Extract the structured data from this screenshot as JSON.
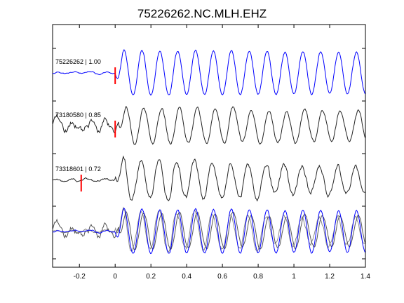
{
  "chart_data": {
    "type": "line",
    "title": "75226262.NC.MLH.EHZ",
    "xlabel": "",
    "ylabel": "",
    "xlim": [
      -0.35,
      1.4
    ],
    "x_ticks": [
      "-0.2",
      "0",
      "0.2",
      "0.4",
      "0.6",
      "0.8",
      "1",
      "1.2",
      "1.4"
    ],
    "x_tick_values": [
      -0.2,
      0,
      0.2,
      0.4,
      0.6,
      0.8,
      1,
      1.2,
      1.4
    ],
    "grid": false,
    "traces": [
      {
        "label": "75226262 | 1.00",
        "color": "#0000ff",
        "pick_time": 0.0,
        "params": {
          "noise": 0.08,
          "amp": 1.0,
          "period": 0.1,
          "phase": 0.0,
          "decay": 0.15,
          "lag": 0.0
        }
      },
      {
        "label": "73180580 | 0.85",
        "color": "#222222",
        "pick_time": 0.0,
        "params": {
          "noise": 0.45,
          "amp": 0.85,
          "period": 0.1,
          "phase": 0.6,
          "decay": 0.45,
          "lag": 0.02
        }
      },
      {
        "label": "73318601 | 0.72",
        "color": "#222222",
        "pick_time": -0.19,
        "params": {
          "noise": 0.1,
          "amp": 0.95,
          "period": 0.1,
          "phase": 0.3,
          "decay": 0.9,
          "lag": 0.0
        }
      }
    ],
    "overlay": {
      "colors": [
        "#0000ff",
        "#555555",
        "#8a8a8a"
      ]
    }
  }
}
